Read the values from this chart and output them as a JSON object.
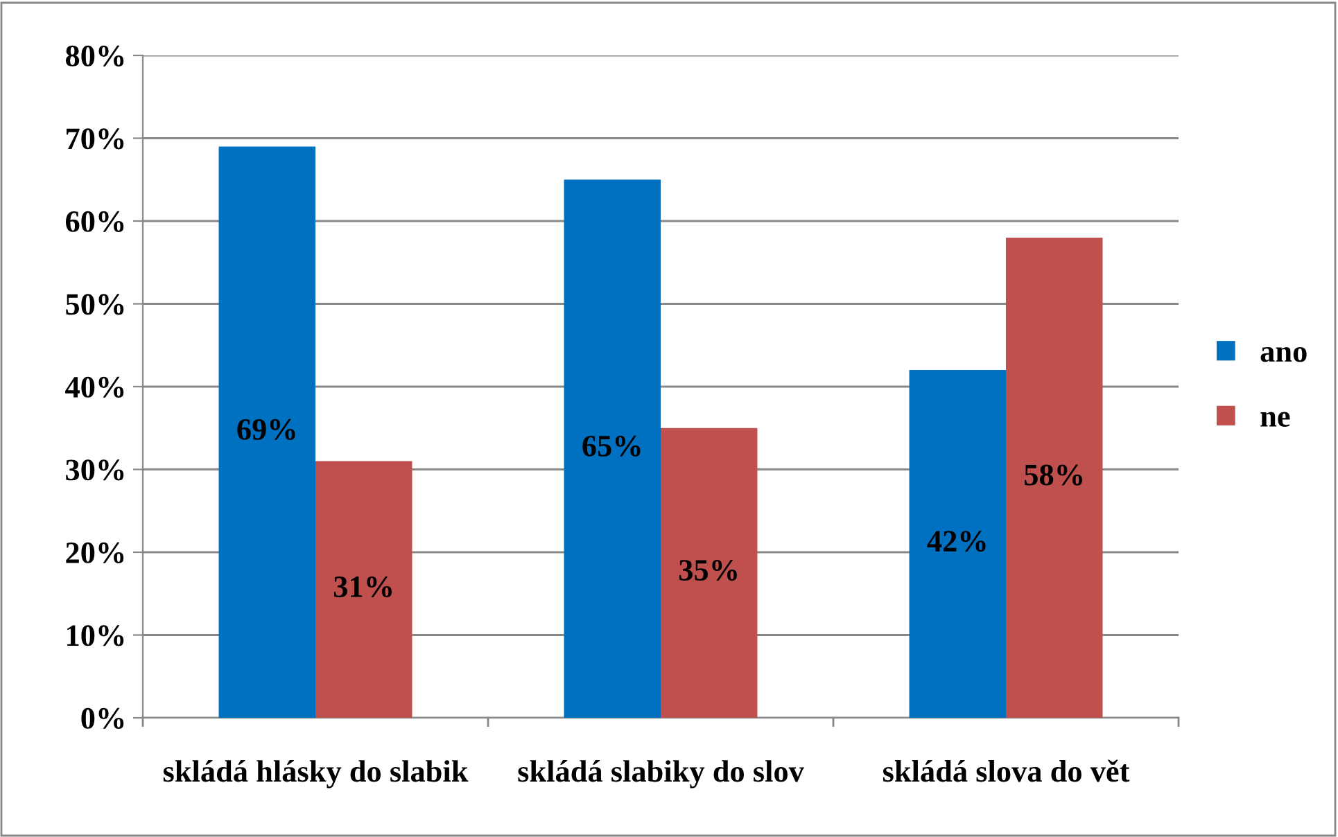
{
  "chart_data": {
    "type": "bar",
    "categories": [
      "skládá hlásky do slabik",
      "skládá slabiky do slov",
      "skládá slova do vět"
    ],
    "series": [
      {
        "name": "ano",
        "color": "#0070c0",
        "values": [
          69,
          65,
          42
        ],
        "value_labels": [
          "69%",
          "65%",
          "42%"
        ]
      },
      {
        "name": "ne",
        "color": "#c0504d",
        "values": [
          31,
          35,
          58
        ],
        "value_labels": [
          "31%",
          "35%",
          "58%"
        ]
      }
    ],
    "ylim": [
      0,
      80
    ],
    "yticks": [
      {
        "value": 0,
        "label": "0%"
      },
      {
        "value": 10,
        "label": "10%"
      },
      {
        "value": 20,
        "label": "20%"
      },
      {
        "value": 30,
        "label": "30%"
      },
      {
        "value": 40,
        "label": "40%"
      },
      {
        "value": 50,
        "label": "50%"
      },
      {
        "value": 60,
        "label": "60%"
      },
      {
        "value": 70,
        "label": "70%"
      },
      {
        "value": 80,
        "label": "80%"
      }
    ],
    "grid": "y",
    "legend": "right"
  }
}
